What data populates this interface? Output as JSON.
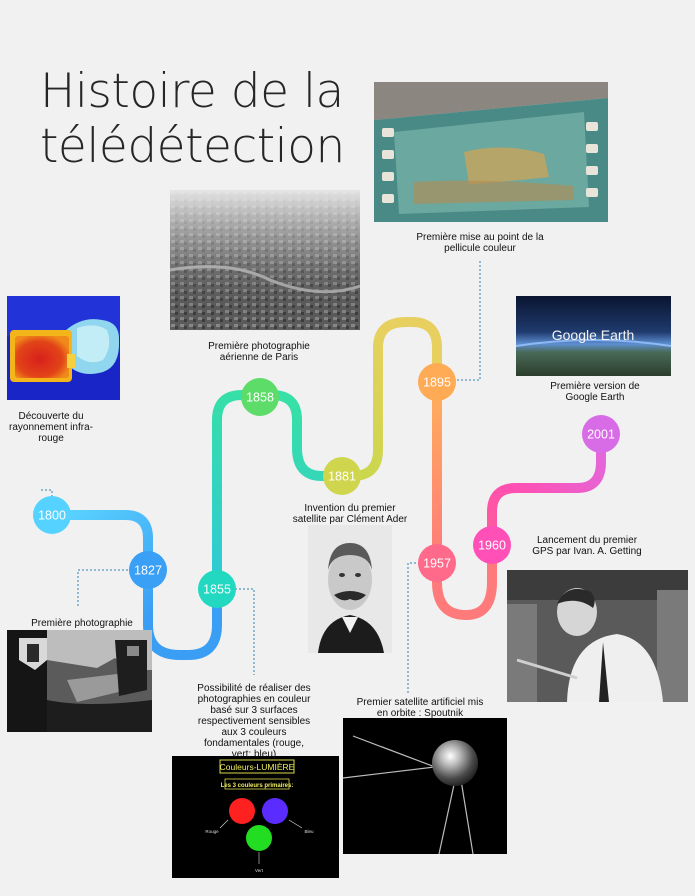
{
  "title": {
    "line1": "Histoire de la",
    "line2": "télédétection"
  },
  "events": [
    {
      "year": "1800",
      "caption": "Découverte du rayonnement infra-rouge",
      "color": "#55d2ff"
    },
    {
      "year": "1827",
      "caption": "Première photographie",
      "color": "#3aa0f5"
    },
    {
      "year": "1855",
      "caption": "Possibilité de réaliser des photographies en couleur basé sur 3 surfaces respectivement sensibles aux 3 couleurs fondamentales (rouge, vert; bleu)",
      "color": "#22d8c0"
    },
    {
      "year": "1858",
      "caption": "Première photographie aérienne de Paris",
      "color": "#5ddc6a"
    },
    {
      "year": "1881",
      "caption": "Invention du premier satellite par Clément Ader",
      "color": "#cfd64e"
    },
    {
      "year": "1895",
      "caption": "Première mise au point de la pellicule couleur",
      "color": "#ffaa55"
    },
    {
      "year": "1957",
      "caption": "Premier satellite artificiel mis en orbite : Spoutnik",
      "color": "#ff6a8a"
    },
    {
      "year": "1960",
      "caption": "Lancement du premier GPS par Ivan. A. Getting",
      "color": "#ff50b8"
    },
    {
      "year": "2001",
      "caption": "Première version de Google Earth",
      "color": "#d86ce6"
    }
  ],
  "color_chart": {
    "title": "Couleurs-LUMIÈRE",
    "subtitle": "Les 3 couleurs primaires:",
    "red_label": "Rouge",
    "green_label": "Vert",
    "blue_label": "Bleu"
  },
  "google_earth": {
    "logo_text": "Google Earth"
  }
}
